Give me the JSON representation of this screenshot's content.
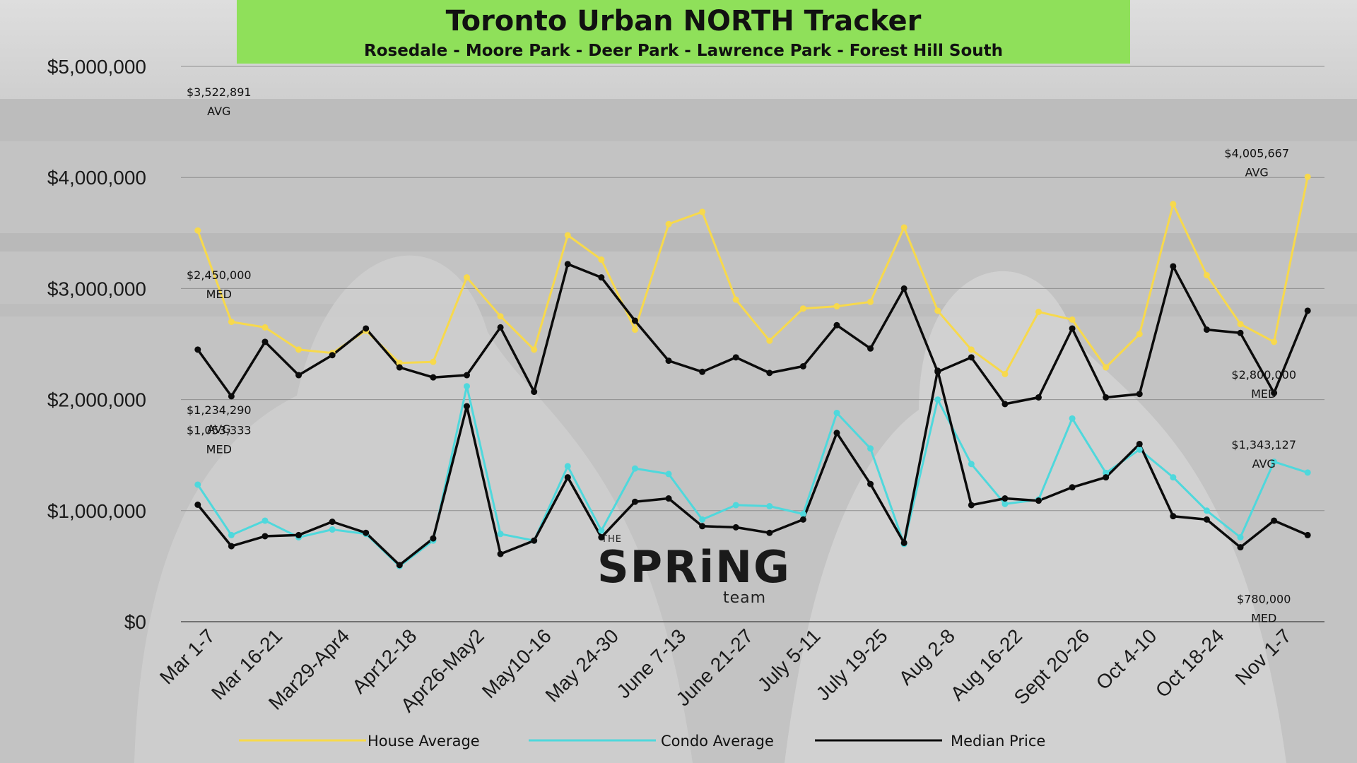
{
  "title": "Toronto Urban NORTH Tracker",
  "subtitle": "Rosedale - Moore Park - Deer Park - Lawrence Park - Forest Hill South",
  "logo": {
    "the": "THE",
    "word": "SPRiNG",
    "team": "team"
  },
  "colors": {
    "house": "#f7d94c",
    "condo": "#4fd8dc",
    "median": "#0b0b0b",
    "title_bg": "#8fe05a"
  },
  "chart_data": {
    "type": "line",
    "ylim": [
      0,
      5000000
    ],
    "yticks": [
      0,
      1000000,
      2000000,
      3000000,
      4000000,
      5000000
    ],
    "ytick_labels": [
      "$0",
      "$1,000,000",
      "$2,000,000",
      "$3,000,000",
      "$4,000,000",
      "$5,000,000"
    ],
    "x_tick_labels": [
      "Mar 1-7",
      "Mar 16-21",
      "Mar29-Apr4",
      "Apr12-18",
      "Apr26-May2",
      "May10-16",
      "May 24-30",
      "June 7-13",
      "June 21-27",
      "July 5-11",
      "July 19-25",
      "Aug 2-8",
      "Aug 16-22",
      "Sept 20-26",
      "Oct 4-10",
      "Oct 18-24",
      "Nov 1-7"
    ],
    "x_tick_every": 2,
    "legend": "bottom",
    "grid": true,
    "series": [
      {
        "name": "House Average",
        "color": "#f7d94c",
        "values": [
          3522891,
          2700000,
          2650000,
          2450000,
          2420000,
          2620000,
          2330000,
          2340000,
          3100000,
          2750000,
          2450000,
          3480000,
          3260000,
          2630000,
          3580000,
          3690000,
          2900000,
          2530000,
          2820000,
          2840000,
          2880000,
          3550000,
          2800000,
          2450000,
          2230000,
          2790000,
          2720000,
          2290000,
          2590000,
          3760000,
          3120000,
          2680000,
          2520000,
          4005667
        ]
      },
      {
        "name": "Condo Average",
        "color": "#4fd8dc",
        "values": [
          1234290,
          780000,
          910000,
          760000,
          830000,
          790000,
          500000,
          730000,
          2120000,
          790000,
          730000,
          1400000,
          820000,
          1380000,
          1330000,
          920000,
          1050000,
          1040000,
          970000,
          1880000,
          1560000,
          700000,
          2000000,
          1420000,
          1060000,
          1100000,
          1830000,
          1340000,
          1550000,
          1300000,
          1000000,
          760000,
          1440000,
          1343127
        ]
      },
      {
        "name": "Median Price",
        "color": "#0b0b0b",
        "values": [
          2450000,
          2030000,
          2520000,
          2220000,
          2400000,
          2640000,
          2290000,
          2200000,
          2220000,
          2650000,
          2070000,
          3220000,
          3100000,
          2710000,
          2350000,
          2250000,
          2380000,
          2240000,
          2300000,
          2670000,
          2460000,
          3000000,
          2250000,
          2380000,
          1960000,
          2020000,
          2640000,
          2020000,
          2050000,
          3200000,
          2630000,
          2600000,
          2060000,
          2800000
        ]
      },
      {
        "name": "",
        "color": "#0b0b0b",
        "values": [
          1053333,
          680000,
          770000,
          780000,
          900000,
          800000,
          510000,
          750000,
          1940000,
          610000,
          730000,
          1300000,
          760000,
          1080000,
          1110000,
          860000,
          850000,
          800000,
          920000,
          1700000,
          1240000,
          710000,
          2260000,
          1050000,
          1110000,
          1090000,
          1210000,
          1300000,
          1600000,
          950000,
          920000,
          670000,
          910000,
          780000
        ]
      }
    ],
    "annotations": [
      {
        "text": "$3,522,891",
        "sub": "AVG",
        "series": 0,
        "index": 0,
        "pos": "above-far"
      },
      {
        "text": "$2,450,000",
        "sub": "MED",
        "series": 2,
        "index": 0,
        "pos": "above"
      },
      {
        "text": "$1,234,290",
        "sub": "AVG",
        "series": 1,
        "index": 0,
        "pos": "above"
      },
      {
        "text": "$1,053,333",
        "sub": "MED",
        "series": 3,
        "index": 0,
        "pos": "above"
      },
      {
        "text": "$4,005,667",
        "sub": "AVG",
        "series": 0,
        "index": 33,
        "pos": "left"
      },
      {
        "text": "$2,800,000",
        "sub": "MED",
        "series": 2,
        "index": 33,
        "pos": "below-left"
      },
      {
        "text": "$1,343,127",
        "sub": "AVG",
        "series": 1,
        "index": 33,
        "pos": "above-left"
      },
      {
        "text": "$780,000",
        "sub": "MED",
        "series": 3,
        "index": 33,
        "pos": "below-left"
      }
    ]
  }
}
